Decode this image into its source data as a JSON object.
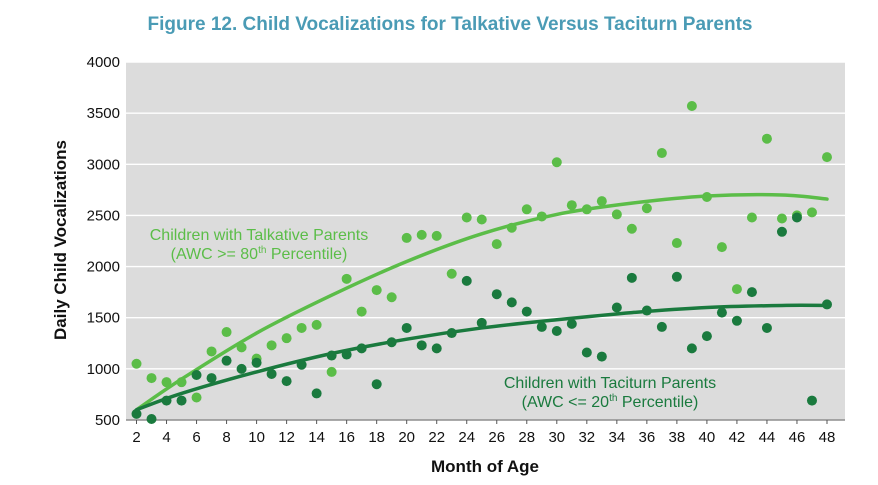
{
  "chart_data": {
    "type": "scatter",
    "title": "Figure 12. Child Vocalizations for Talkative Versus Taciturn Parents",
    "xlabel": "Month of Age",
    "ylabel": "Daily Child Vocalizations",
    "xlim": [
      1.3,
      49.2
    ],
    "ylim": [
      500,
      4000
    ],
    "xticks": [
      2,
      4,
      6,
      8,
      10,
      12,
      14,
      16,
      18,
      20,
      22,
      24,
      26,
      28,
      30,
      32,
      34,
      36,
      38,
      40,
      42,
      44,
      46,
      48
    ],
    "yticks": [
      500,
      1000,
      1500,
      2000,
      2500,
      3000,
      3500,
      4000
    ],
    "grid": "horizontal",
    "colors": {
      "talkative": "#5bbd48",
      "taciturn": "#1a7a3e",
      "plot_bg": "#dcdcdc",
      "title": "#4a9bb5"
    },
    "annotations": {
      "talkative": {
        "line1": "Children with Talkative Parents",
        "line2_pre": "(AWC >= 80",
        "line2_sup": "th",
        "line2_post": " Percentile)"
      },
      "taciturn": {
        "line1": "Children with Taciturn Parents",
        "line2_pre": "(AWC <= 20",
        "line2_sup": "th",
        "line2_post": " Percentile)"
      }
    },
    "series": [
      {
        "name": "Children with Talkative Parents",
        "key": "talkative",
        "points": [
          [
            2,
            1050
          ],
          [
            3,
            910
          ],
          [
            4,
            870
          ],
          [
            5,
            870
          ],
          [
            6,
            720
          ],
          [
            7,
            1170
          ],
          [
            8,
            1360
          ],
          [
            9,
            1210
          ],
          [
            10,
            1100
          ],
          [
            11,
            1230
          ],
          [
            12,
            1300
          ],
          [
            13,
            1400
          ],
          [
            14,
            1430
          ],
          [
            15,
            970
          ],
          [
            16,
            1880
          ],
          [
            17,
            1560
          ],
          [
            18,
            1770
          ],
          [
            19,
            1700
          ],
          [
            20,
            2280
          ],
          [
            21,
            2310
          ],
          [
            22,
            2300
          ],
          [
            23,
            1930
          ],
          [
            24,
            2480
          ],
          [
            25,
            2460
          ],
          [
            26,
            2220
          ],
          [
            27,
            2380
          ],
          [
            28,
            2560
          ],
          [
            29,
            2490
          ],
          [
            30,
            3020
          ],
          [
            31,
            2600
          ],
          [
            32,
            2560
          ],
          [
            33,
            2640
          ],
          [
            34,
            2510
          ],
          [
            35,
            2370
          ],
          [
            36,
            2570
          ],
          [
            37,
            3110
          ],
          [
            38,
            2230
          ],
          [
            39,
            3570
          ],
          [
            40,
            2680
          ],
          [
            41,
            2190
          ],
          [
            42,
            1780
          ],
          [
            43,
            2480
          ],
          [
            44,
            3250
          ],
          [
            45,
            2470
          ],
          [
            46,
            2500
          ],
          [
            47,
            2530
          ],
          [
            48,
            3070
          ]
        ],
        "trend": [
          [
            2,
            600
          ],
          [
            5,
            900
          ],
          [
            10,
            1350
          ],
          [
            15,
            1720
          ],
          [
            20,
            2050
          ],
          [
            25,
            2320
          ],
          [
            30,
            2510
          ],
          [
            35,
            2620
          ],
          [
            40,
            2690
          ],
          [
            45,
            2700
          ],
          [
            48,
            2660
          ]
        ]
      },
      {
        "name": "Children with Taciturn Parents",
        "key": "taciturn",
        "points": [
          [
            2,
            560
          ],
          [
            3,
            510
          ],
          [
            4,
            690
          ],
          [
            5,
            690
          ],
          [
            6,
            940
          ],
          [
            7,
            910
          ],
          [
            8,
            1080
          ],
          [
            9,
            1000
          ],
          [
            10,
            1060
          ],
          [
            11,
            950
          ],
          [
            12,
            880
          ],
          [
            13,
            1040
          ],
          [
            14,
            760
          ],
          [
            15,
            1130
          ],
          [
            16,
            1140
          ],
          [
            17,
            1200
          ],
          [
            18,
            850
          ],
          [
            19,
            1260
          ],
          [
            20,
            1400
          ],
          [
            21,
            1230
          ],
          [
            22,
            1200
          ],
          [
            23,
            1350
          ],
          [
            24,
            1860
          ],
          [
            25,
            1450
          ],
          [
            26,
            1730
          ],
          [
            27,
            1650
          ],
          [
            28,
            1560
          ],
          [
            29,
            1410
          ],
          [
            30,
            1370
          ],
          [
            31,
            1440
          ],
          [
            32,
            1160
          ],
          [
            33,
            1120
          ],
          [
            34,
            1600
          ],
          [
            35,
            1890
          ],
          [
            36,
            1570
          ],
          [
            37,
            1410
          ],
          [
            38,
            1900
          ],
          [
            39,
            1200
          ],
          [
            40,
            1320
          ],
          [
            41,
            1550
          ],
          [
            42,
            1470
          ],
          [
            43,
            1750
          ],
          [
            44,
            1400
          ],
          [
            45,
            2340
          ],
          [
            46,
            2480
          ],
          [
            47,
            690
          ],
          [
            48,
            1630
          ]
        ],
        "trend": [
          [
            2,
            600
          ],
          [
            5,
            760
          ],
          [
            10,
            970
          ],
          [
            15,
            1150
          ],
          [
            20,
            1290
          ],
          [
            25,
            1400
          ],
          [
            30,
            1480
          ],
          [
            35,
            1550
          ],
          [
            40,
            1600
          ],
          [
            45,
            1620
          ],
          [
            48,
            1620
          ]
        ]
      }
    ]
  }
}
